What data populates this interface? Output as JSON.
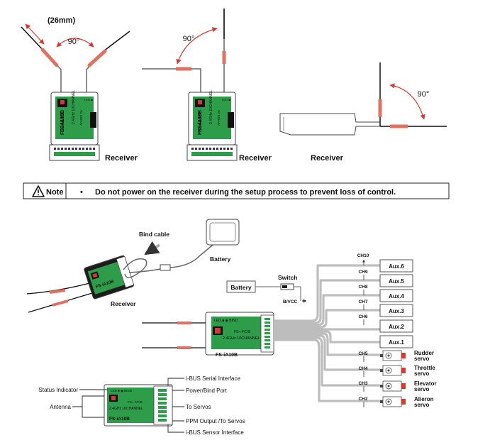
{
  "top": {
    "antenna_length": "(26mm)",
    "angle_label": "90°",
    "receiver_label": "Receiver",
    "module_name": "FS-iA10B",
    "module_name_small": "FS-iA10B"
  },
  "note": {
    "label": "Note",
    "bullet": "•",
    "text": "Do not power on the receiver during the setup process to prevent loss of control."
  },
  "bind": {
    "bind_cable": "Bind cable",
    "battery": "Battery",
    "receiver": "Receiver"
  },
  "wiring": {
    "battery": "Battery",
    "switch": "Switch",
    "bvcc": "B/VCC",
    "channels": [
      "CH10",
      "CH9",
      "CH8",
      "CH7",
      "CH6",
      "CH5",
      "CH4",
      "CH3",
      "CH2"
    ],
    "aux": [
      "Aux.6",
      "Aux.5",
      "Aux.4",
      "Aux.3",
      "Aux.2",
      "Aux.1"
    ],
    "servos": [
      {
        "line1": "Rudder",
        "line2": "servo"
      },
      {
        "line1": "Throttle",
        "line2": "servo"
      },
      {
        "line1": "Elevator",
        "line2": "servo"
      },
      {
        "line1": "Alieron",
        "line2": "servo"
      }
    ]
  },
  "ports": {
    "status_indicator": "Status Indicator",
    "antenna": "Antenna",
    "ibus_serial": "i-BUS Serial Interface",
    "power_bind": "Power/Bind Port",
    "to_servos": "To Servos",
    "ppm": "PPM Output /To Servos",
    "ibus_sensor": "i-BUS Sensor Interface"
  },
  "colors": {
    "pcb_green": "#2e9d4a",
    "body_black": "#1c1c1c",
    "wire_grey": "#bdbdbd",
    "antenna_red": "#d43a2f"
  }
}
